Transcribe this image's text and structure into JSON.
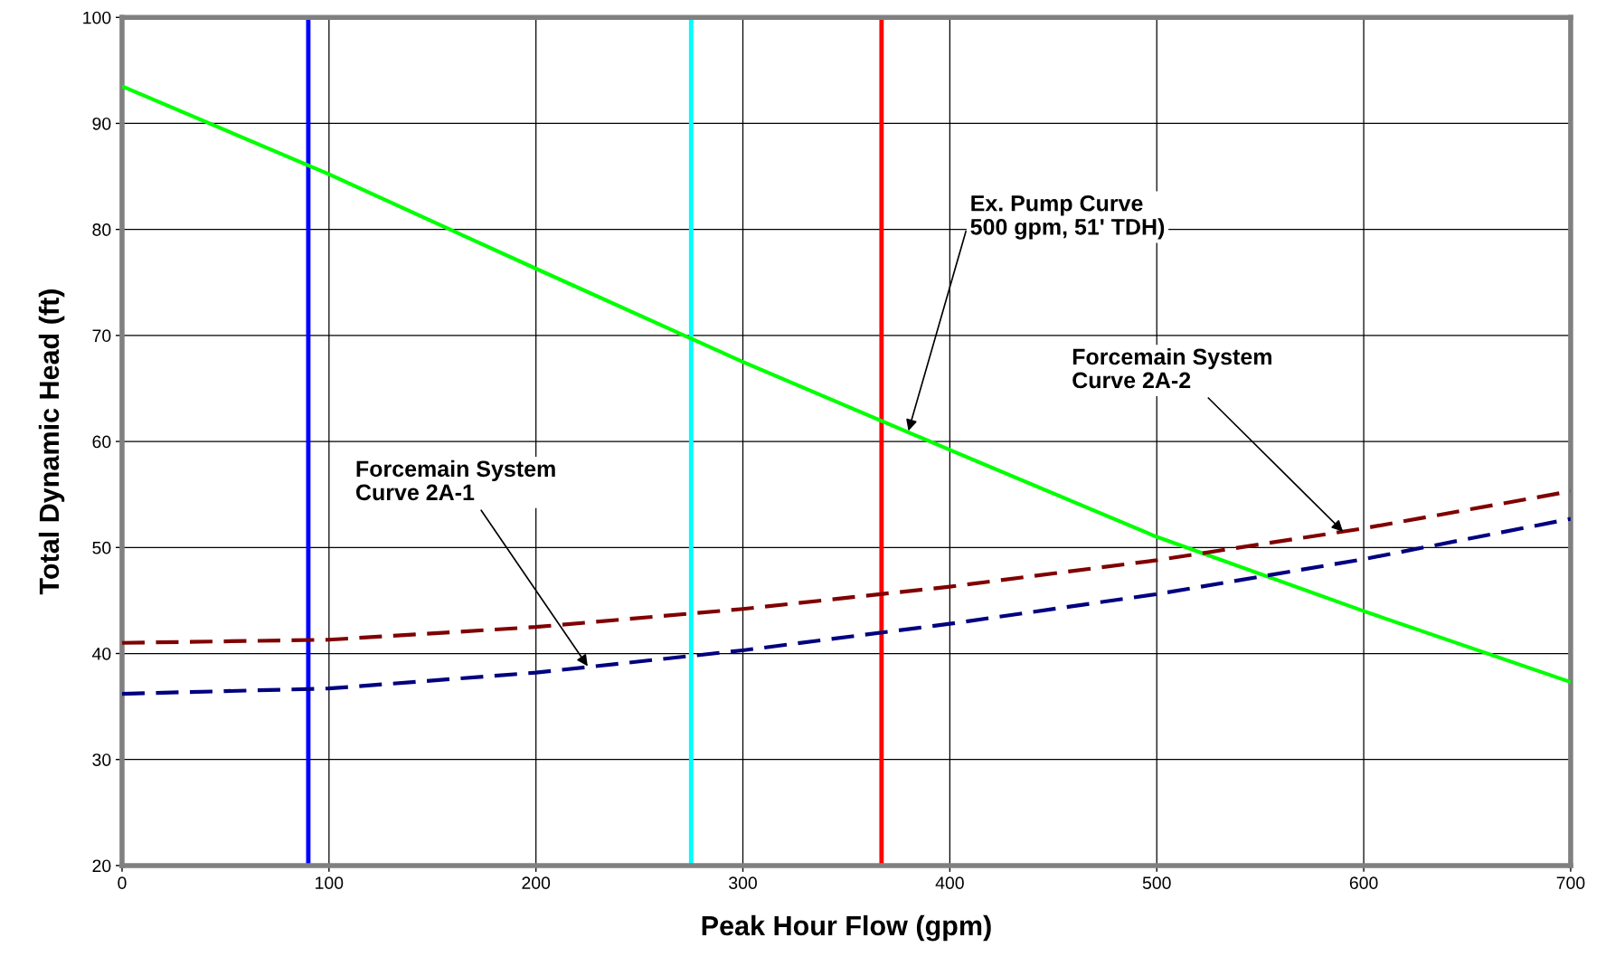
{
  "chart_data": {
    "type": "line",
    "xlabel": "Peak Hour Flow (gpm)",
    "ylabel": "Total Dynamic Head (ft)",
    "x": [
      0,
      100,
      200,
      300,
      400,
      500,
      600,
      700
    ],
    "series": [
      {
        "color": "#00ff00",
        "line_style": "solid",
        "values": [
          93.5,
          85.2,
          76.3,
          67.5,
          59.2,
          51,
          44,
          37.3
        ]
      },
      {
        "color": "#800000",
        "line_style": "dashed",
        "values": [
          41,
          41.3,
          42.5,
          44.2,
          46.3,
          48.8,
          51.8,
          55.3
        ]
      },
      {
        "color": "#000080",
        "line_style": "dashed",
        "values": [
          36.2,
          36.7,
          38.2,
          40.3,
          42.8,
          45.6,
          48.9,
          52.7
        ]
      }
    ],
    "ref_lines": [
      {
        "axis": "x",
        "value": 90,
        "color": "#0000ff"
      },
      {
        "axis": "x",
        "value": 275,
        "color": "#00ffff"
      },
      {
        "axis": "x",
        "value": 367,
        "color": "#ff0000"
      }
    ],
    "annotations": [
      {
        "text": "Ex. Pump Curve\n500 gpm, 51' TDH)",
        "x": 380,
        "y": 61
      },
      {
        "text": "Forcemain System\nCurve 2A-2",
        "x": 590,
        "y": 51.5
      },
      {
        "text": "Forcemain System\nCurve 2A-1",
        "x": 225,
        "y": 38.8
      }
    ],
    "xlim": [
      0,
      700
    ],
    "ylim": [
      20,
      100
    ],
    "xticks": [
      0,
      100,
      200,
      300,
      400,
      500,
      600,
      700
    ],
    "yticks": [
      20,
      30,
      40,
      50,
      60,
      70,
      80,
      90,
      100
    ],
    "grid": true,
    "legend": false,
    "marker": "none"
  }
}
